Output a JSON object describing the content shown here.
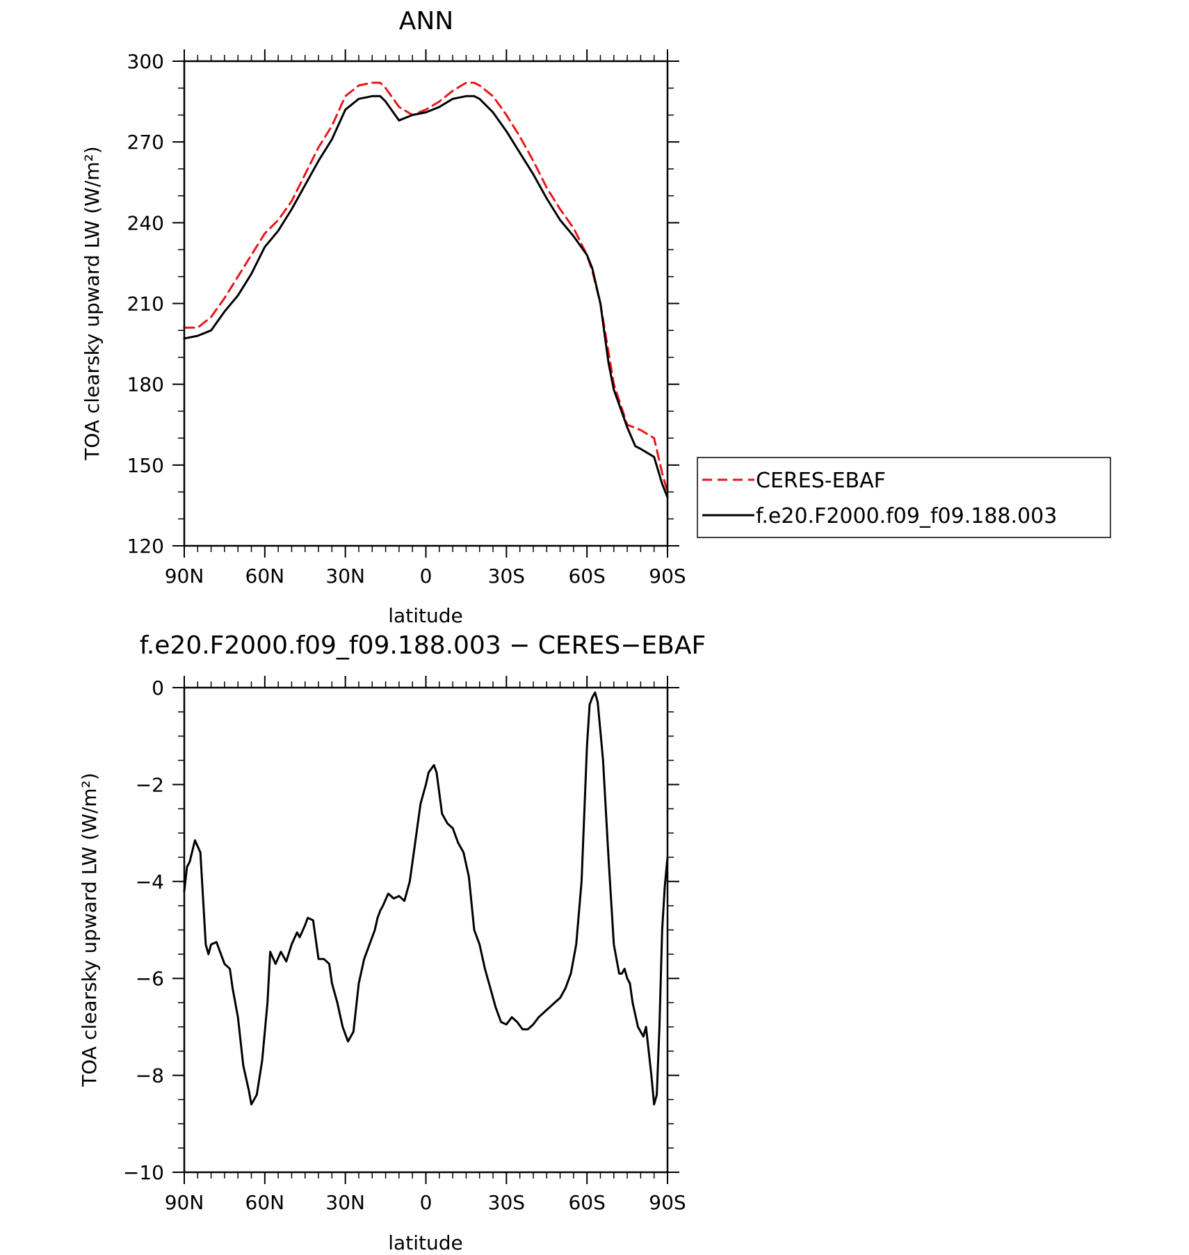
{
  "chart_data": [
    {
      "type": "line",
      "title": "ANN",
      "xlabel": "latitude",
      "ylabel": "TOA clearsky upward LW (W/m²)",
      "xlim": [
        90,
        -90
      ],
      "ylim": [
        120,
        300
      ],
      "x_ticks": [
        90,
        60,
        30,
        0,
        -30,
        -60,
        -90
      ],
      "x_tick_labels": [
        "90N",
        "60N",
        "30N",
        "0",
        "30S",
        "60S",
        "90S"
      ],
      "y_ticks": [
        120,
        150,
        180,
        210,
        240,
        270,
        300
      ],
      "y_tick_labels": [
        "120",
        "150",
        "180",
        "210",
        "240",
        "270",
        "300"
      ],
      "legend": {
        "position": "right-outside"
      },
      "series": [
        {
          "name": "CERES-EBAF",
          "color": "#e8161b",
          "style": "dashed",
          "x": [
            90,
            85,
            80,
            75,
            70,
            65,
            60,
            55,
            50,
            45,
            40,
            35,
            30,
            25,
            20,
            17,
            15,
            10,
            5,
            0,
            -5,
            -10,
            -15,
            -18,
            -20,
            -25,
            -30,
            -35,
            -40,
            -45,
            -50,
            -55,
            -60,
            -62,
            -65,
            -68,
            -70,
            -75,
            -80,
            -85,
            -88,
            -90
          ],
          "y": [
            201,
            201,
            205,
            212,
            220,
            228,
            236,
            241,
            248,
            258,
            268,
            276,
            287,
            291,
            292,
            292,
            290,
            283,
            280,
            282,
            285,
            289,
            292,
            292,
            291,
            287,
            280,
            272,
            263,
            253,
            245,
            238,
            228,
            222,
            210,
            192,
            180,
            165,
            163,
            160,
            147,
            140
          ]
        },
        {
          "name": "f.e20.F2000.f09_f09.188.003",
          "color": "#000000",
          "style": "solid",
          "x": [
            90,
            85,
            80,
            75,
            70,
            65,
            60,
            55,
            50,
            45,
            40,
            35,
            30,
            25,
            20,
            17,
            15,
            10,
            5,
            0,
            -5,
            -10,
            -15,
            -18,
            -20,
            -25,
            -30,
            -35,
            -40,
            -45,
            -50,
            -55,
            -60,
            -62,
            -65,
            -68,
            -70,
            -75,
            -78,
            -80,
            -85,
            -88,
            -90
          ],
          "y": [
            197,
            198,
            200,
            207,
            213,
            221,
            231,
            237,
            245,
            254,
            263,
            271,
            282,
            286,
            287,
            287,
            285,
            278,
            280,
            281,
            283,
            286,
            287,
            287,
            286,
            281,
            274,
            266,
            258,
            249,
            241,
            235,
            228,
            223,
            210,
            188,
            178,
            164,
            157,
            156,
            153,
            143,
            138
          ]
        }
      ]
    },
    {
      "type": "line",
      "title": "f.e20.F2000.f09_f09.188.003 − CERES−EBAF",
      "xlabel": "latitude",
      "ylabel": "TOA clearsky upward LW (W/m²)",
      "xlim": [
        90,
        -90
      ],
      "ylim": [
        -10,
        0
      ],
      "x_ticks": [
        90,
        60,
        30,
        0,
        -30,
        -60,
        -90
      ],
      "x_tick_labels": [
        "90N",
        "60N",
        "30N",
        "0",
        "30S",
        "60S",
        "90S"
      ],
      "y_ticks": [
        -10,
        -8,
        -6,
        -4,
        -2,
        0
      ],
      "y_tick_labels": [
        "−10",
        "−8",
        "−6",
        "−4",
        "−2",
        "0"
      ],
      "series": [
        {
          "color": "#000000",
          "style": "solid",
          "x": [
            90,
            89,
            88,
            86,
            84,
            82,
            81,
            80,
            78,
            77,
            75,
            73,
            72,
            70,
            68,
            66,
            65,
            63,
            61,
            59,
            58,
            56,
            54,
            52,
            50,
            48,
            47,
            45,
            44,
            42,
            40,
            38,
            36,
            35,
            33,
            31,
            29,
            27,
            25,
            23,
            21,
            19,
            18,
            17,
            16,
            14,
            12,
            10,
            8,
            6,
            5,
            4,
            3,
            2,
            1,
            0,
            -1,
            -3,
            -4,
            -6,
            -8,
            -10,
            -12,
            -14,
            -16,
            -18,
            -20,
            -22,
            -24,
            -26,
            -28,
            -30,
            -32,
            -34,
            -36,
            -38,
            -40,
            -42,
            -44,
            -46,
            -48,
            -50,
            -52,
            -54,
            -56,
            -58,
            -60,
            -61,
            -62,
            -63,
            -64,
            -65,
            -66,
            -68,
            -70,
            -72,
            -73,
            -74,
            -75,
            -76,
            -77,
            -79,
            -80,
            -81,
            -82,
            -84,
            -85,
            -86,
            -87,
            -88,
            -89,
            -90
          ],
          "y": [
            -4.2,
            -3.7,
            -3.6,
            -3.15,
            -3.4,
            -5.3,
            -5.5,
            -5.3,
            -5.25,
            -5.4,
            -5.7,
            -5.8,
            -6.2,
            -6.8,
            -7.8,
            -8.3,
            -8.6,
            -8.4,
            -7.7,
            -6.5,
            -5.45,
            -5.7,
            -5.45,
            -5.65,
            -5.3,
            -5.05,
            -5.15,
            -4.9,
            -4.75,
            -4.8,
            -5.6,
            -5.6,
            -5.7,
            -6.1,
            -6.5,
            -7.0,
            -7.3,
            -7.1,
            -6.1,
            -5.6,
            -5.3,
            -5.0,
            -4.75,
            -4.6,
            -4.5,
            -4.25,
            -4.35,
            -4.3,
            -4.4,
            -4.0,
            -3.6,
            -3.2,
            -2.8,
            -2.4,
            -2.2,
            -2.0,
            -1.75,
            -1.6,
            -1.75,
            -2.6,
            -2.8,
            -2.9,
            -3.2,
            -3.4,
            -3.9,
            -5.0,
            -5.3,
            -5.8,
            -6.2,
            -6.6,
            -6.9,
            -6.95,
            -6.8,
            -6.9,
            -7.05,
            -7.05,
            -6.95,
            -6.8,
            -6.7,
            -6.6,
            -6.5,
            -6.4,
            -6.2,
            -5.9,
            -5.3,
            -4.0,
            -1.2,
            -0.35,
            -0.2,
            -0.1,
            -0.3,
            -0.9,
            -1.5,
            -3.5,
            -5.3,
            -5.9,
            -5.9,
            -5.8,
            -6.0,
            -6.1,
            -6.5,
            -7.0,
            -7.1,
            -7.2,
            -7.0,
            -8.0,
            -8.6,
            -8.4,
            -7.0,
            -5.0,
            -4.1,
            -3.5
          ]
        }
      ]
    }
  ]
}
